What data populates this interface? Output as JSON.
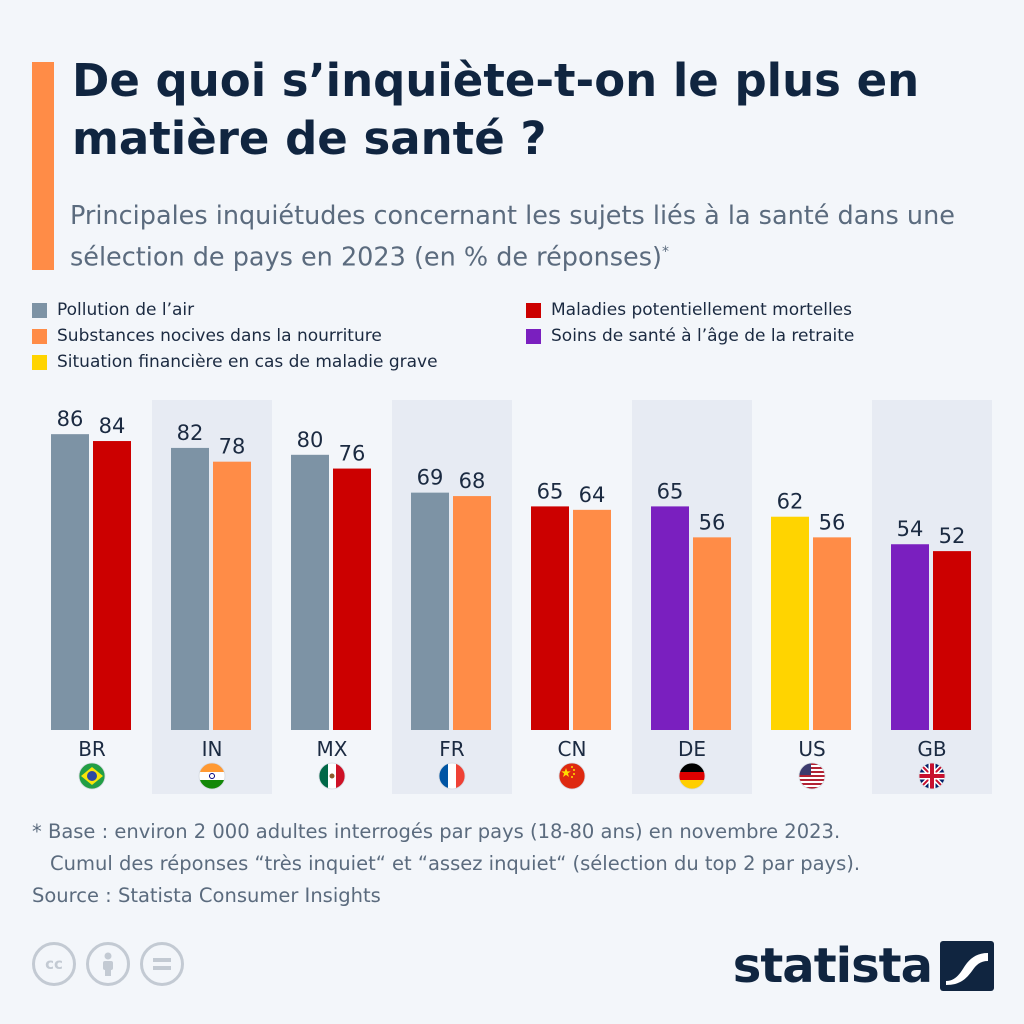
{
  "header": {
    "title": "De quoi s’inquiète-t-on le plus en matière de santé ?",
    "subtitle": "Principales inquiétudes concernant les sujets liés à la santé dans une sélection de pays en 2023 (en % de réponses)",
    "subtitle_mark": "*"
  },
  "legend": [
    {
      "label": "Pollution de l’air",
      "color": "#7d93a5"
    },
    {
      "label": "Substances nocives dans la nourriture",
      "color": "#ff8c47"
    },
    {
      "label": "Situation financière en cas de maladie grave",
      "color": "#ffd400"
    },
    {
      "label": "Maladies potentiellement mortelles",
      "color": "#cc0000"
    },
    {
      "label": "Soins de santé à l’âge de la retraite",
      "color": "#7a1fbf"
    }
  ],
  "chart_data": {
    "type": "bar",
    "categories": [
      "BR",
      "IN",
      "MX",
      "FR",
      "CN",
      "DE",
      "US",
      "GB"
    ],
    "ylim": [
      0,
      100
    ],
    "bars": [
      [
        {
          "value": 86,
          "series": "Pollution de l’air"
        },
        {
          "value": 84,
          "series": "Maladies potentiellement mortelles"
        }
      ],
      [
        {
          "value": 82,
          "series": "Pollution de l’air"
        },
        {
          "value": 78,
          "series": "Substances nocives dans la nourriture"
        }
      ],
      [
        {
          "value": 80,
          "series": "Pollution de l’air"
        },
        {
          "value": 76,
          "series": "Maladies potentiellement mortelles"
        }
      ],
      [
        {
          "value": 69,
          "series": "Pollution de l’air"
        },
        {
          "value": 68,
          "series": "Substances nocives dans la nourriture"
        }
      ],
      [
        {
          "value": 65,
          "series": "Maladies potentiellement mortelles"
        },
        {
          "value": 64,
          "series": "Substances nocives dans la nourriture"
        }
      ],
      [
        {
          "value": 65,
          "series": "Soins de santé à l’âge de la retraite"
        },
        {
          "value": 56,
          "series": "Substances nocives dans la nourriture"
        }
      ],
      [
        {
          "value": 62,
          "series": "Situation financière en cas de maladie grave"
        },
        {
          "value": 56,
          "series": "Substances nocives dans la nourriture"
        }
      ],
      [
        {
          "value": 54,
          "series": "Soins de santé à l’âge de la retraite"
        },
        {
          "value": 52,
          "series": "Maladies potentiellement mortelles"
        }
      ]
    ],
    "flags": [
      "brazil-flag-icon",
      "india-flag-icon",
      "mexico-flag-icon",
      "france-flag-icon",
      "china-flag-icon",
      "germany-flag-icon",
      "usa-flag-icon",
      "uk-flag-icon"
    ],
    "grid": false
  },
  "footnote": {
    "line1": "* Base : environ 2 000 adultes interrogés par pays (18-80 ans) en novembre 2023.",
    "line2": "Cumul des réponses “très inquiet“ et “assez inquiet“ (sélection du top 2 par pays).",
    "source": "Source : Statista Consumer Insights"
  },
  "brand": {
    "name": "statista"
  },
  "license_icons": [
    "creative-commons-icon",
    "attribution-icon",
    "no-derivatives-icon"
  ]
}
